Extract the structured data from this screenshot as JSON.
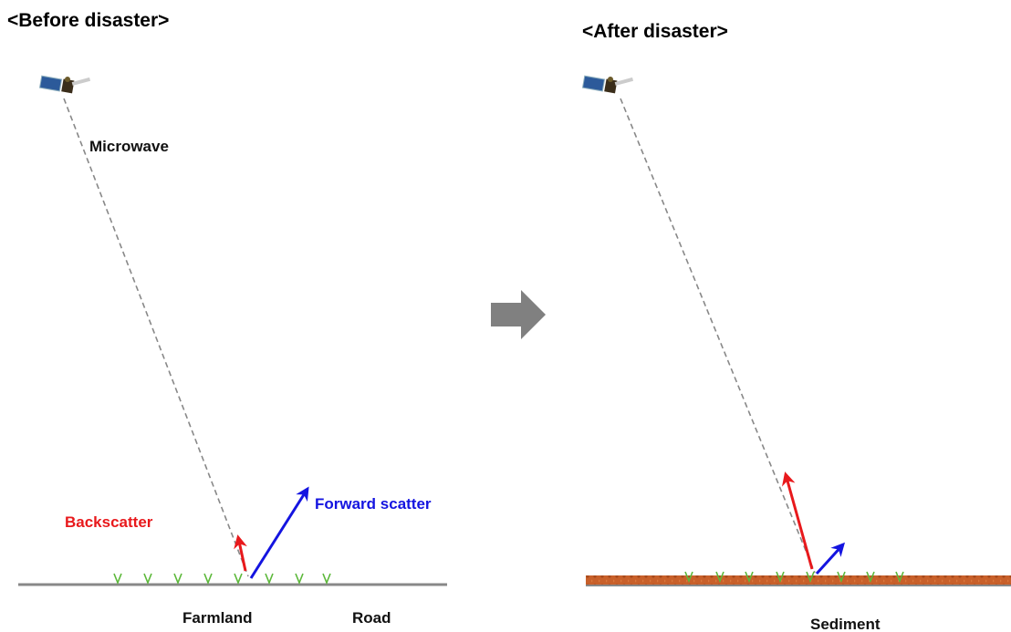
{
  "before": {
    "title": "<Before disaster>",
    "labels": {
      "microwave": "Microwave",
      "backscatter": "Backscatter",
      "forward_scatter": "Forward scatter",
      "farmland": "Farmland",
      "road": "Road"
    }
  },
  "after": {
    "title": "<After disaster>",
    "labels": {
      "sediment": "Sediment"
    }
  }
}
